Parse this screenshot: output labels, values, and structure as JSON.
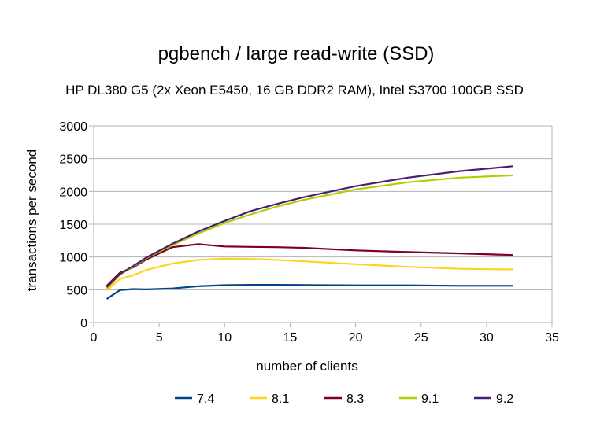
{
  "chart_data": {
    "type": "line",
    "title": "pgbench / large read-write (SSD)",
    "subtitle": "HP DL380 G5 (2x Xeon E5450, 16 GB DDR2 RAM), Intel S3700 100GB SSD",
    "xlabel": "number of clients",
    "ylabel": "transactions per second",
    "xlim": [
      0,
      35
    ],
    "ylim": [
      0,
      3000
    ],
    "xticks": [
      0,
      5,
      10,
      15,
      20,
      25,
      30,
      35
    ],
    "yticks": [
      0,
      500,
      1000,
      1500,
      2000,
      2500,
      3000
    ],
    "grid": true,
    "legend_position": "bottom",
    "x": [
      1,
      2,
      3,
      4,
      6,
      8,
      10,
      12,
      14,
      16,
      20,
      24,
      28,
      32
    ],
    "series": [
      {
        "name": "7.4",
        "color": "#004586",
        "values": [
          360,
          495,
          510,
          505,
          520,
          555,
          570,
          575,
          575,
          572,
          568,
          568,
          560,
          560
        ]
      },
      {
        "name": "8.1",
        "color": "#ffd320",
        "values": [
          490,
          665,
          720,
          800,
          900,
          955,
          975,
          970,
          955,
          935,
          890,
          850,
          820,
          810
        ]
      },
      {
        "name": "8.3",
        "color": "#7e0021",
        "values": [
          560,
          760,
          840,
          960,
          1150,
          1195,
          1160,
          1155,
          1150,
          1140,
          1100,
          1075,
          1055,
          1030
        ]
      },
      {
        "name": "9.1",
        "color": "#aecf00",
        "values": [
          520,
          730,
          850,
          980,
          1180,
          1360,
          1520,
          1650,
          1770,
          1870,
          2030,
          2140,
          2210,
          2245
        ]
      },
      {
        "name": "9.2",
        "color": "#4b1f6f",
        "values": [
          540,
          740,
          860,
          990,
          1200,
          1390,
          1550,
          1700,
          1810,
          1910,
          2080,
          2210,
          2310,
          2385
        ]
      }
    ]
  }
}
